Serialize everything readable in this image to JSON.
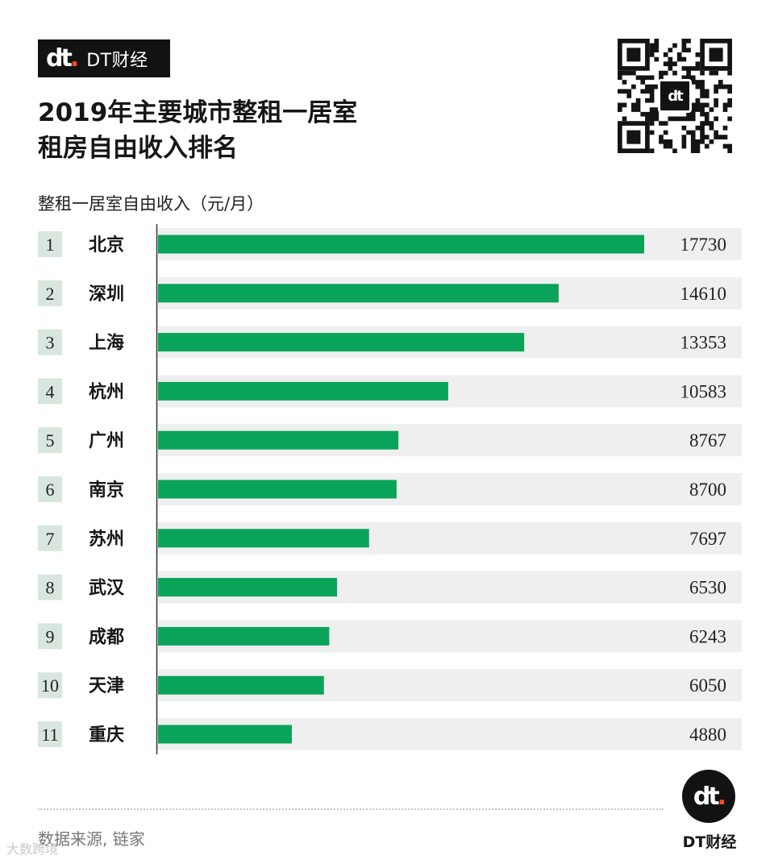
{
  "brand": {
    "mark": "dt",
    "name": "DT财经",
    "accent": "#ff4a1c",
    "background": "#121212"
  },
  "title_lines": [
    "2019年主要城市整租一居室",
    "租房自由收入排名"
  ],
  "qr": {
    "icon": "qr-code-icon",
    "badge": "dt"
  },
  "chart_data": {
    "type": "bar",
    "orientation": "horizontal",
    "title": "",
    "xlabel": "整租一居室自由收入（元/月）",
    "ranks": [
      "1",
      "2",
      "3",
      "4",
      "5",
      "6",
      "7",
      "8",
      "9",
      "10",
      "11"
    ],
    "categories": [
      "北京",
      "深圳",
      "上海",
      "杭州",
      "广州",
      "南京",
      "苏州",
      "武汉",
      "成都",
      "天津",
      "重庆"
    ],
    "values": [
      17730,
      14610,
      13353,
      10583,
      8767,
      8700,
      7697,
      6530,
      6243,
      6050,
      4880
    ],
    "xlim": [
      0,
      17730
    ],
    "bar_color": "#0aa35a",
    "row_background": "#efefef",
    "rank_background": "#d8e6de",
    "grid": false,
    "legend": "none"
  },
  "footer": {
    "source": "数据来源, 链家",
    "logo_mark": "dt",
    "logo_name": "DT财经",
    "corner_mark": "大数跨境"
  }
}
